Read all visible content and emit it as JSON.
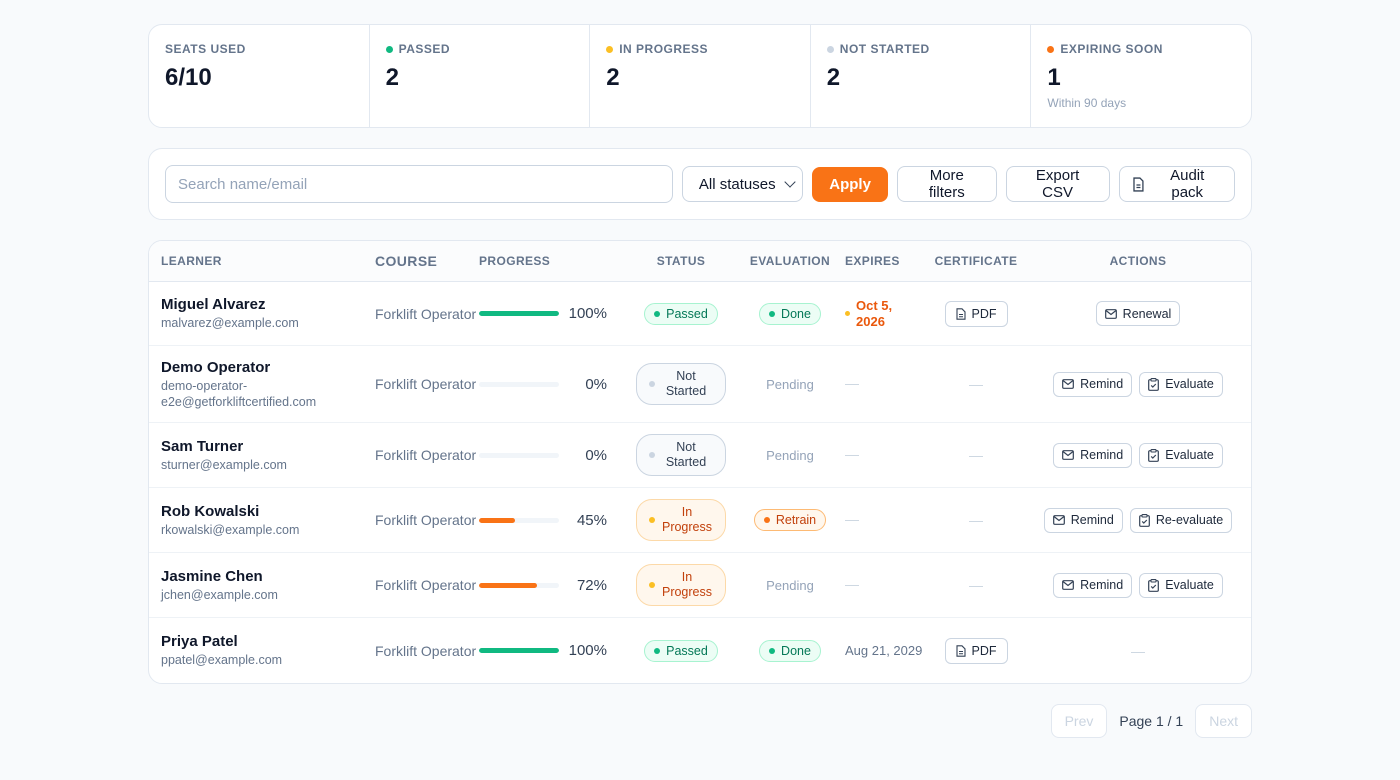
{
  "stats": [
    {
      "label": "SEATS USED",
      "value": "6/10",
      "dot": "",
      "sub": ""
    },
    {
      "label": "PASSED",
      "value": "2",
      "dot": "#10b981",
      "sub": ""
    },
    {
      "label": "IN PROGRESS",
      "value": "2",
      "dot": "#fbbf24",
      "sub": ""
    },
    {
      "label": "NOT STARTED",
      "value": "2",
      "dot": "#cbd5e1",
      "sub": ""
    },
    {
      "label": "EXPIRING SOON",
      "value": "1",
      "dot": "#f97316",
      "sub": "Within 90 days"
    }
  ],
  "toolbar": {
    "search_placeholder": "Search name/email",
    "status_select": "All statuses",
    "apply": "Apply",
    "more_filters": "More filters",
    "export_csv": "Export CSV",
    "audit_pack": "Audit pack"
  },
  "table": {
    "headers": {
      "learner": "LEARNER",
      "course": "COURSE",
      "progress": "PROGRESS",
      "status": "STATUS",
      "evaluation": "EVALUATION",
      "expires": "EXPIRES",
      "certificate": "CERTIFICATE",
      "actions": "ACTIONS"
    },
    "rows": [
      {
        "name": "Miguel Alvarez",
        "email": "malvarez@example.com",
        "course": "Forklift Operator",
        "progress": 100,
        "progress_label": "100%",
        "status": "Passed",
        "evaluation": "Done",
        "expires": "Oct 5, 2026",
        "expires_soon": true,
        "certificate": "PDF",
        "actions": [
          "Renewal"
        ]
      },
      {
        "name": "Demo Operator",
        "email": "demo-operator-e2e@getforkliftcertified.com",
        "course": "Forklift Operator",
        "progress": 0,
        "progress_label": "0%",
        "status": "Not Started",
        "evaluation": "Pending",
        "expires": "—",
        "expires_soon": false,
        "certificate": "—",
        "actions": [
          "Remind",
          "Evaluate"
        ]
      },
      {
        "name": "Sam Turner",
        "email": "sturner@example.com",
        "course": "Forklift Operator",
        "progress": 0,
        "progress_label": "0%",
        "status": "Not Started",
        "evaluation": "Pending",
        "expires": "—",
        "expires_soon": false,
        "certificate": "—",
        "actions": [
          "Remind",
          "Evaluate"
        ]
      },
      {
        "name": "Rob Kowalski",
        "email": "rkowalski@example.com",
        "course": "Forklift Operator",
        "progress": 45,
        "progress_label": "45%",
        "status": "In Progress",
        "evaluation": "Retrain",
        "expires": "—",
        "expires_soon": false,
        "certificate": "—",
        "actions": [
          "Remind",
          "Re-evaluate"
        ]
      },
      {
        "name": "Jasmine Chen",
        "email": "jchen@example.com",
        "course": "Forklift Operator",
        "progress": 72,
        "progress_label": "72%",
        "status": "In Progress",
        "evaluation": "Pending",
        "expires": "—",
        "expires_soon": false,
        "certificate": "—",
        "actions": [
          "Remind",
          "Evaluate"
        ]
      },
      {
        "name": "Priya Patel",
        "email": "ppatel@example.com",
        "course": "Forklift Operator",
        "progress": 100,
        "progress_label": "100%",
        "status": "Passed",
        "evaluation": "Done",
        "expires": "Aug 21, 2029",
        "expires_soon": false,
        "certificate": "PDF",
        "actions": []
      }
    ]
  },
  "pagination": {
    "prev": "Prev",
    "page": "Page 1 / 1",
    "next": "Next"
  },
  "colors": {
    "accent": "#f97316",
    "success": "#10b981",
    "warning": "#fbbf24"
  },
  "icons": {
    "mail": "mail-icon",
    "clipboard": "clipboard-icon",
    "document": "document-icon"
  }
}
